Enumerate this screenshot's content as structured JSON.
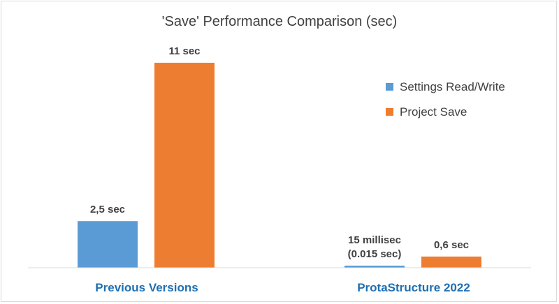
{
  "chart_data": {
    "type": "bar",
    "title": "'Save' Performance Comparison (sec)",
    "xlabel": "",
    "ylabel": "",
    "categories": [
      "Previous Versions",
      "ProtaStructure 2022"
    ],
    "series": [
      {
        "name": "Settings Read/Write",
        "color": "#5b9bd5",
        "values": [
          2.5,
          0.015
        ],
        "labels": [
          [
            "2,5 sec"
          ],
          [
            "15 millisec",
            "(0.015 sec)"
          ]
        ]
      },
      {
        "name": "Project Save",
        "color": "#ed7d31",
        "values": [
          11,
          0.6
        ],
        "labels": [
          [
            "11 sec"
          ],
          [
            "0,6 sec"
          ]
        ]
      }
    ],
    "ylim": [
      0,
      12
    ],
    "grid": false,
    "legend_position": "right",
    "category_label_color": "#1f6fb2"
  }
}
